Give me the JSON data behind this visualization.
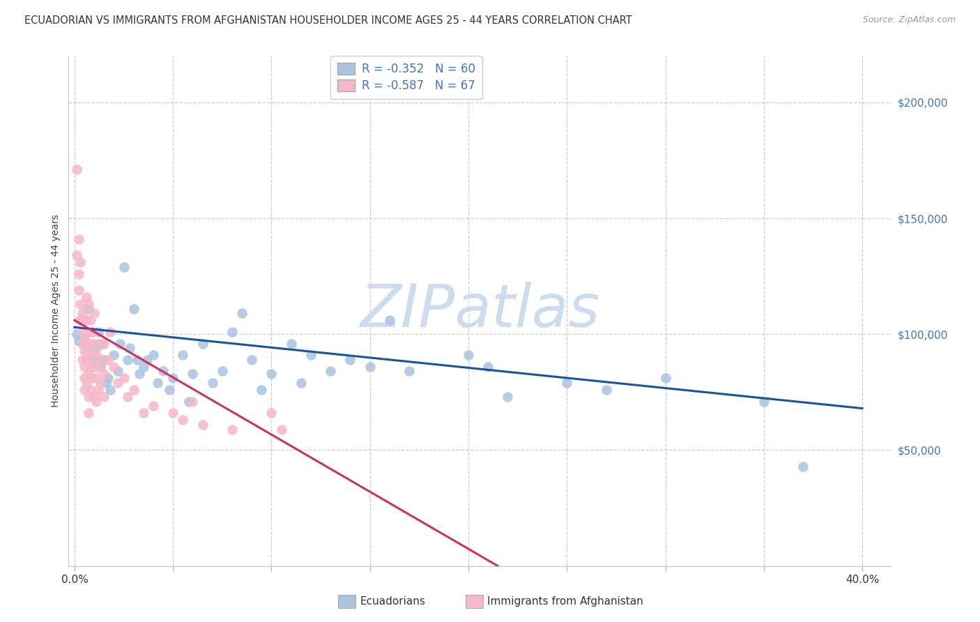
{
  "title": "ECUADORIAN VS IMMIGRANTS FROM AFGHANISTAN HOUSEHOLDER INCOME AGES 25 - 44 YEARS CORRELATION CHART",
  "source": "Source: ZipAtlas.com",
  "ylabel": "Householder Income Ages 25 - 44 years",
  "ylim": [
    0,
    220000
  ],
  "xlim": [
    -0.003,
    0.415
  ],
  "yticks": [
    0,
    50000,
    100000,
    150000,
    200000
  ],
  "xticks": [
    0.0,
    0.05,
    0.1,
    0.15,
    0.2,
    0.25,
    0.3,
    0.35,
    0.4
  ],
  "xtick_labels": [
    "0.0%",
    "",
    "",
    "",
    "",
    "",
    "",
    "",
    "40.0%"
  ],
  "blue_color": "#aac4e0",
  "pink_color": "#f5b8c8",
  "blue_line_color": "#1a52a0",
  "pink_line_color": "#d03060",
  "legend_text_color": "#4472c4",
  "ytick_color": "#4472c4",
  "grid_color": "#cccccc",
  "watermark_text": "ZIPatlas",
  "watermark_color": "#ccdcee",
  "legend_r1": "R = -0.352   N = 60",
  "legend_r2": "R = -0.587   N = 67",
  "bottom_legend_blue": "Ecuadorians",
  "bottom_legend_pink": "Immigrants from Afghanistan",
  "blue_scatter": [
    [
      0.001,
      100000
    ],
    [
      0.002,
      97000
    ],
    [
      0.003,
      106000
    ],
    [
      0.005,
      99000
    ],
    [
      0.006,
      93000
    ],
    [
      0.007,
      111000
    ],
    [
      0.008,
      96000
    ],
    [
      0.009,
      101000
    ],
    [
      0.01,
      89000
    ],
    [
      0.011,
      94000
    ],
    [
      0.012,
      101000
    ],
    [
      0.013,
      86000
    ],
    [
      0.014,
      96000
    ],
    [
      0.015,
      89000
    ],
    [
      0.016,
      79000
    ],
    [
      0.017,
      81000
    ],
    [
      0.018,
      76000
    ],
    [
      0.02,
      91000
    ],
    [
      0.022,
      84000
    ],
    [
      0.023,
      96000
    ],
    [
      0.025,
      129000
    ],
    [
      0.027,
      89000
    ],
    [
      0.028,
      94000
    ],
    [
      0.03,
      111000
    ],
    [
      0.032,
      89000
    ],
    [
      0.033,
      83000
    ],
    [
      0.035,
      86000
    ],
    [
      0.037,
      89000
    ],
    [
      0.04,
      91000
    ],
    [
      0.042,
      79000
    ],
    [
      0.045,
      84000
    ],
    [
      0.048,
      76000
    ],
    [
      0.05,
      81000
    ],
    [
      0.055,
      91000
    ],
    [
      0.058,
      71000
    ],
    [
      0.06,
      83000
    ],
    [
      0.065,
      96000
    ],
    [
      0.07,
      79000
    ],
    [
      0.075,
      84000
    ],
    [
      0.08,
      101000
    ],
    [
      0.085,
      109000
    ],
    [
      0.09,
      89000
    ],
    [
      0.095,
      76000
    ],
    [
      0.1,
      83000
    ],
    [
      0.11,
      96000
    ],
    [
      0.115,
      79000
    ],
    [
      0.12,
      91000
    ],
    [
      0.13,
      84000
    ],
    [
      0.14,
      89000
    ],
    [
      0.15,
      86000
    ],
    [
      0.16,
      106000
    ],
    [
      0.17,
      84000
    ],
    [
      0.2,
      91000
    ],
    [
      0.21,
      86000
    ],
    [
      0.22,
      73000
    ],
    [
      0.25,
      79000
    ],
    [
      0.27,
      76000
    ],
    [
      0.3,
      81000
    ],
    [
      0.35,
      71000
    ],
    [
      0.37,
      43000
    ]
  ],
  "pink_scatter": [
    [
      0.001,
      171000
    ],
    [
      0.001,
      134000
    ],
    [
      0.002,
      141000
    ],
    [
      0.002,
      126000
    ],
    [
      0.002,
      119000
    ],
    [
      0.003,
      131000
    ],
    [
      0.003,
      106000
    ],
    [
      0.003,
      113000
    ],
    [
      0.004,
      109000
    ],
    [
      0.004,
      101000
    ],
    [
      0.004,
      96000
    ],
    [
      0.004,
      89000
    ],
    [
      0.005,
      106000
    ],
    [
      0.005,
      99000
    ],
    [
      0.005,
      93000
    ],
    [
      0.005,
      86000
    ],
    [
      0.005,
      81000
    ],
    [
      0.005,
      76000
    ],
    [
      0.006,
      116000
    ],
    [
      0.006,
      106000
    ],
    [
      0.006,
      96000
    ],
    [
      0.006,
      89000
    ],
    [
      0.006,
      79000
    ],
    [
      0.007,
      113000
    ],
    [
      0.007,
      101000
    ],
    [
      0.007,
      91000
    ],
    [
      0.007,
      83000
    ],
    [
      0.007,
      73000
    ],
    [
      0.007,
      66000
    ],
    [
      0.008,
      106000
    ],
    [
      0.008,
      96000
    ],
    [
      0.008,
      86000
    ],
    [
      0.008,
      76000
    ],
    [
      0.009,
      101000
    ],
    [
      0.009,
      91000
    ],
    [
      0.009,
      81000
    ],
    [
      0.01,
      109000
    ],
    [
      0.01,
      96000
    ],
    [
      0.01,
      86000
    ],
    [
      0.01,
      73000
    ],
    [
      0.011,
      91000
    ],
    [
      0.011,
      81000
    ],
    [
      0.011,
      71000
    ],
    [
      0.012,
      96000
    ],
    [
      0.012,
      86000
    ],
    [
      0.012,
      76000
    ],
    [
      0.013,
      89000
    ],
    [
      0.013,
      79000
    ],
    [
      0.015,
      96000
    ],
    [
      0.015,
      83000
    ],
    [
      0.015,
      73000
    ],
    [
      0.017,
      89000
    ],
    [
      0.018,
      101000
    ],
    [
      0.02,
      86000
    ],
    [
      0.022,
      79000
    ],
    [
      0.025,
      81000
    ],
    [
      0.027,
      73000
    ],
    [
      0.03,
      76000
    ],
    [
      0.035,
      66000
    ],
    [
      0.04,
      69000
    ],
    [
      0.05,
      66000
    ],
    [
      0.055,
      63000
    ],
    [
      0.06,
      71000
    ],
    [
      0.065,
      61000
    ],
    [
      0.08,
      59000
    ],
    [
      0.1,
      66000
    ],
    [
      0.105,
      59000
    ]
  ],
  "blue_trend": [
    0.0,
    103000,
    0.4,
    68000
  ],
  "pink_trend": [
    0.0,
    106000,
    0.215,
    0
  ]
}
